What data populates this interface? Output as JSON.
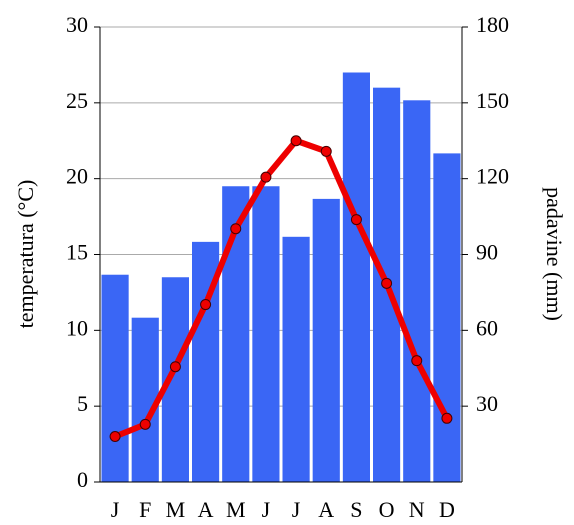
{
  "chart_data": {
    "type": "bar",
    "categories": [
      "J",
      "F",
      "M",
      "A",
      "M",
      "J",
      "J",
      "A",
      "S",
      "O",
      "N",
      "D"
    ],
    "series": [
      {
        "type": "bar",
        "axis": "y2",
        "color": "#3a66f5",
        "values": [
          82,
          65,
          81,
          95,
          117,
          117,
          97,
          112,
          162,
          156,
          151,
          130
        ]
      },
      {
        "type": "line",
        "axis": "y",
        "color": "#ee0000",
        "values": [
          3.0,
          3.8,
          7.6,
          11.7,
          16.7,
          20.1,
          22.5,
          21.8,
          17.3,
          13.1,
          8.0,
          4.2
        ]
      }
    ],
    "ylabel": "temperatura (°C)",
    "y2label": "padavine (mm)",
    "ylim": [
      0,
      30
    ],
    "yticks": [
      0,
      5,
      10,
      15,
      20,
      25,
      30
    ],
    "y2lim": [
      0,
      180
    ],
    "y2ticks": [
      30,
      60,
      90,
      120,
      150,
      180
    ],
    "grid": true
  }
}
